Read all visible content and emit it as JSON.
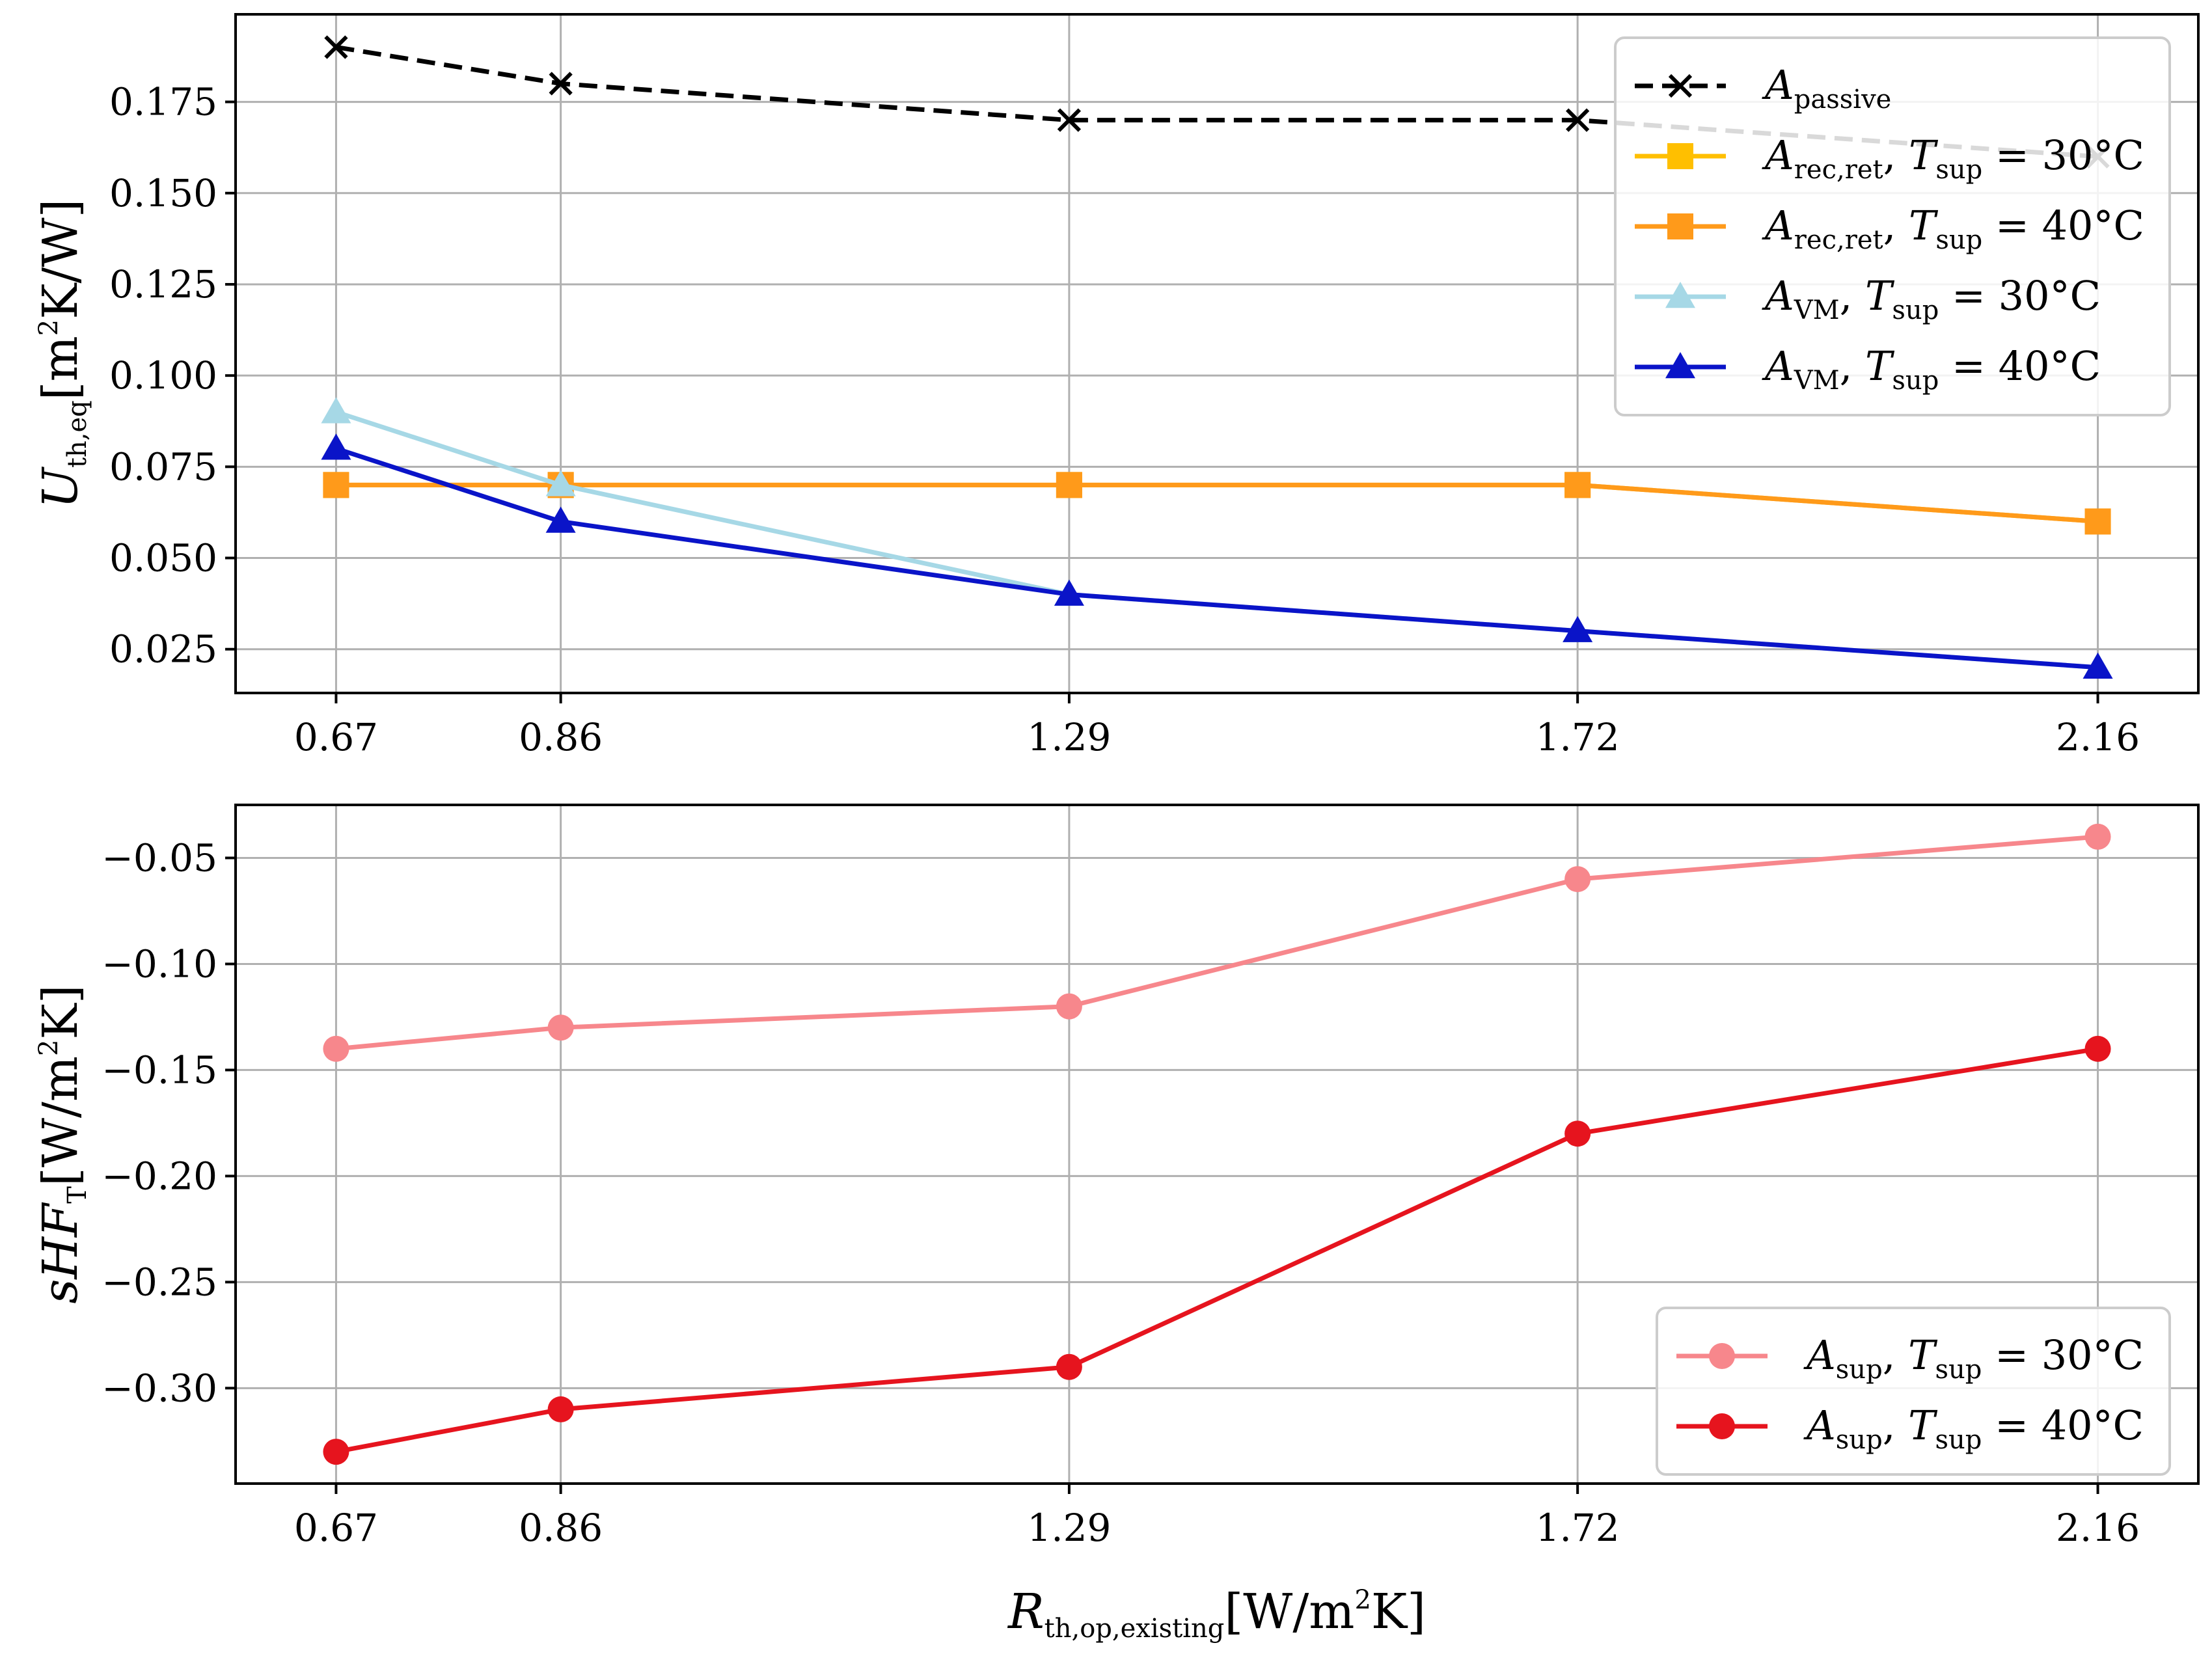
{
  "chart_data": [
    {
      "type": "line",
      "x": [
        0.67,
        0.86,
        1.29,
        1.72,
        2.16
      ],
      "xticks": [
        "0.67",
        "0.86",
        "1.29",
        "1.72",
        "2.16"
      ],
      "ylim": [
        0.013,
        0.199
      ],
      "yticks": [
        "0.025",
        "0.050",
        "0.075",
        "0.100",
        "0.125",
        "0.150",
        "0.175"
      ],
      "ylabel": {
        "main": "U",
        "sub": "th,eq",
        "unit": "[m",
        "sup": "2",
        "unit_end": "K/W]"
      },
      "xlabel": "",
      "grid": true,
      "legend_position": "top-right",
      "series": [
        {
          "name": "A",
          "name_sub": "passive",
          "suffix": "",
          "suffix_sub": "",
          "suffix_end": "",
          "color": "#000000",
          "marker": "x",
          "dashed": true,
          "values": [
            0.19,
            0.18,
            0.17,
            0.17,
            0.16
          ]
        },
        {
          "name": "A",
          "name_sub": "rec,ret",
          "suffix": ", T",
          "suffix_sub": "sup",
          "suffix_end": " = 30°C",
          "color": "#ffbf00",
          "marker": "square",
          "dashed": false,
          "values": [
            0.07,
            0.07,
            0.07,
            0.07,
            0.06
          ]
        },
        {
          "name": "A",
          "name_sub": "rec,ret",
          "suffix": ", T",
          "suffix_sub": "sup",
          "suffix_end": " = 40°C",
          "color": "#ff9a1a",
          "marker": "square",
          "dashed": false,
          "values": [
            0.07,
            0.07,
            0.07,
            0.07,
            0.06
          ]
        },
        {
          "name": "A",
          "name_sub": "VM",
          "suffix": ", T",
          "suffix_sub": "sup",
          "suffix_end": " = 30°C",
          "color": "#a6d8e6",
          "marker": "triangle",
          "dashed": false,
          "values": [
            0.09,
            0.07,
            0.04,
            0.03,
            0.02
          ]
        },
        {
          "name": "A",
          "name_sub": "VM",
          "suffix": ", T",
          "suffix_sub": "sup",
          "suffix_end": " = 40°C",
          "color": "#0a14c8",
          "marker": "triangle",
          "dashed": false,
          "values": [
            0.08,
            0.06,
            0.04,
            0.03,
            0.02
          ]
        }
      ]
    },
    {
      "type": "line",
      "x": [
        0.67,
        0.86,
        1.29,
        1.72,
        2.16
      ],
      "xticks": [
        "0.67",
        "0.86",
        "1.29",
        "1.72",
        "2.16"
      ],
      "ylim": [
        -0.345,
        -0.025
      ],
      "yticks": [
        "−0.30",
        "−0.25",
        "−0.20",
        "−0.15",
        "−0.10",
        "−0.05"
      ],
      "ylabel": {
        "main": "sHF",
        "sub": "T",
        "unit": "[W/m",
        "sup": "2",
        "unit_end": "K]"
      },
      "xlabel": {
        "main": "R",
        "sub": "th,op,existing",
        "unit": "[W/m",
        "sup": "2",
        "unit_end": "K]"
      },
      "grid": true,
      "legend_position": "bottom-right",
      "series": [
        {
          "name": "A",
          "name_sub": "sup",
          "suffix": ", T",
          "suffix_sub": "sup",
          "suffix_end": " = 30°C",
          "color": "#f7878c",
          "marker": "circle",
          "dashed": false,
          "values": [
            -0.14,
            -0.13,
            -0.12,
            -0.06,
            -0.04
          ]
        },
        {
          "name": "A",
          "name_sub": "sup",
          "suffix": ", T",
          "suffix_sub": "sup",
          "suffix_end": " = 40°C",
          "color": "#e6141e",
          "marker": "circle",
          "dashed": false,
          "values": [
            -0.33,
            -0.31,
            -0.29,
            -0.18,
            -0.14
          ]
        }
      ]
    }
  ]
}
